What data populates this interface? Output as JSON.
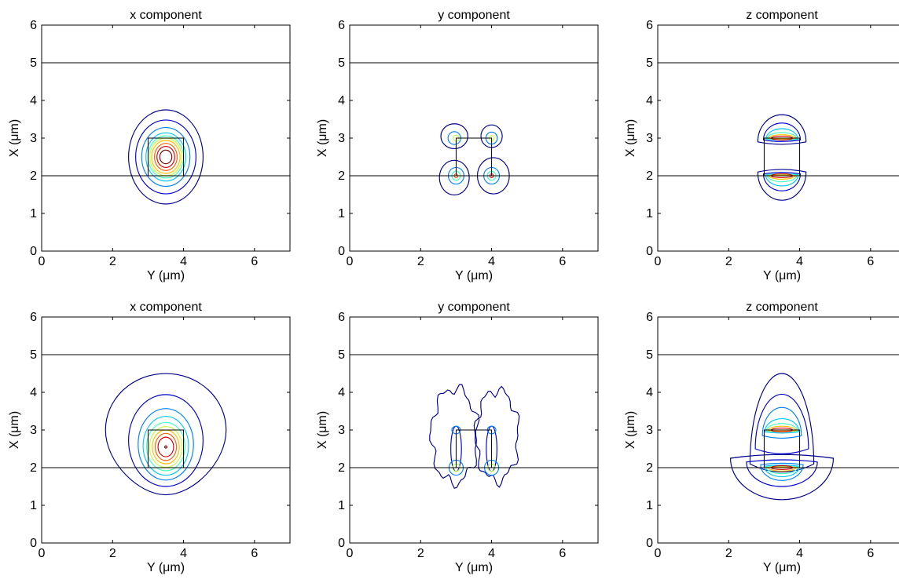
{
  "chart_data": [
    {
      "type": "contour",
      "title": "x component",
      "xlabel": "Y (μm)",
      "ylabel": "X (μm)",
      "xlim": [
        0,
        7
      ],
      "ylim": [
        0,
        6
      ],
      "xticks": [
        "0",
        "2",
        "4",
        "6"
      ],
      "yticks": [
        "0",
        "1",
        "2",
        "3",
        "4",
        "5",
        "6"
      ],
      "grid": false,
      "hlines": [
        2,
        5
      ],
      "core_box": {
        "y": [
          3,
          4
        ],
        "x": [
          2,
          3
        ]
      },
      "contours": [
        {
          "kind": "ellipse",
          "cy": 3.5,
          "cx": 2.5,
          "ry": 1.05,
          "rx": 1.25,
          "color": "#00008f"
        },
        {
          "kind": "ellipse",
          "cy": 3.5,
          "cx": 2.5,
          "ry": 0.85,
          "rx": 0.98,
          "color": "#0000d0"
        },
        {
          "kind": "ellipse",
          "cy": 3.5,
          "cx": 2.5,
          "ry": 0.68,
          "rx": 0.78,
          "color": "#0080ff"
        },
        {
          "kind": "ellipse",
          "cy": 3.5,
          "cx": 2.5,
          "ry": 0.56,
          "rx": 0.64,
          "color": "#00c8ff"
        },
        {
          "kind": "ellipse",
          "cy": 3.5,
          "cx": 2.5,
          "ry": 0.5,
          "rx": 0.56,
          "color": "#40ffbf"
        },
        {
          "kind": "ellipse",
          "cy": 3.5,
          "cx": 2.5,
          "ry": 0.45,
          "rx": 0.5,
          "color": "#bfff40"
        },
        {
          "kind": "ellipse",
          "cy": 3.5,
          "cx": 2.5,
          "ry": 0.4,
          "rx": 0.44,
          "color": "#ffbf00"
        },
        {
          "kind": "ellipse",
          "cy": 3.5,
          "cx": 2.5,
          "ry": 0.32,
          "rx": 0.36,
          "color": "#ff6000"
        },
        {
          "kind": "ellipse",
          "cy": 3.5,
          "cx": 2.5,
          "ry": 0.25,
          "rx": 0.28,
          "color": "#e00000"
        },
        {
          "kind": "ellipse",
          "cy": 3.5,
          "cx": 2.5,
          "ry": 0.17,
          "rx": 0.18,
          "color": "#800000"
        }
      ]
    },
    {
      "type": "contour",
      "title": "y component",
      "xlabel": "Y (μm)",
      "ylabel": "X (μm)",
      "xlim": [
        0,
        7
      ],
      "ylim": [
        0,
        6
      ],
      "xticks": [
        "0",
        "2",
        "4",
        "6"
      ],
      "yticks": [
        "0",
        "1",
        "2",
        "3",
        "4",
        "5",
        "6"
      ],
      "grid": false,
      "hlines": [
        2,
        5
      ],
      "core_box": {
        "y": [
          3,
          4
        ],
        "x": [
          2,
          3
        ]
      },
      "contours": [
        {
          "kind": "ellipse",
          "cy": 2.95,
          "cx": 3.05,
          "ry": 0.38,
          "rx": 0.33,
          "color": "#00008f"
        },
        {
          "kind": "ellipse",
          "cy": 2.95,
          "cx": 3.0,
          "ry": 0.18,
          "rx": 0.17,
          "color": "#0080ff"
        },
        {
          "kind": "ellipse",
          "cy": 3.0,
          "cx": 3.0,
          "ry": 0.08,
          "rx": 0.08,
          "color": "#bfff40"
        },
        {
          "kind": "ellipse",
          "cy": 4.0,
          "cx": 3.05,
          "ry": 0.3,
          "rx": 0.3,
          "color": "#00008f"
        },
        {
          "kind": "ellipse",
          "cy": 4.0,
          "cx": 3.0,
          "ry": 0.16,
          "rx": 0.16,
          "color": "#0080ff"
        },
        {
          "kind": "ellipse",
          "cy": 4.0,
          "cx": 3.0,
          "ry": 0.07,
          "rx": 0.07,
          "color": "#bfff40"
        },
        {
          "kind": "ellipse",
          "cy": 2.95,
          "cx": 1.95,
          "ry": 0.42,
          "rx": 0.46,
          "color": "#00008f"
        },
        {
          "kind": "ellipse",
          "cy": 3.0,
          "cx": 2.0,
          "ry": 0.22,
          "rx": 0.22,
          "color": "#0080ff"
        },
        {
          "kind": "ellipse",
          "cy": 3.0,
          "cx": 2.0,
          "ry": 0.12,
          "rx": 0.12,
          "color": "#40ffbf"
        },
        {
          "kind": "ellipse",
          "cy": 3.0,
          "cx": 2.0,
          "ry": 0.05,
          "rx": 0.05,
          "color": "#ff6000"
        },
        {
          "kind": "ellipse",
          "cy": 4.05,
          "cx": 2.0,
          "ry": 0.45,
          "rx": 0.48,
          "color": "#00008f"
        },
        {
          "kind": "ellipse",
          "cy": 4.0,
          "cx": 2.0,
          "ry": 0.22,
          "rx": 0.22,
          "color": "#0080ff"
        },
        {
          "kind": "ellipse",
          "cy": 4.0,
          "cx": 2.0,
          "ry": 0.12,
          "rx": 0.12,
          "color": "#40ffbf"
        },
        {
          "kind": "ellipse",
          "cy": 4.0,
          "cx": 2.0,
          "ry": 0.05,
          "rx": 0.05,
          "color": "#ff0000"
        }
      ]
    },
    {
      "type": "contour",
      "title": "z component",
      "xlabel": "Y (μm)",
      "ylabel": "X (μm)",
      "xlim": [
        0,
        7
      ],
      "ylim": [
        0,
        6
      ],
      "xticks": [
        "0",
        "2",
        "4",
        "6"
      ],
      "yticks": [
        "0",
        "1",
        "2",
        "3",
        "4",
        "5",
        "6"
      ],
      "grid": false,
      "hlines": [
        2,
        5
      ],
      "core_box": {
        "y": [
          3,
          4
        ],
        "x": [
          2,
          3
        ]
      },
      "contours": [
        {
          "kind": "upper_lobe",
          "cy": 3.5,
          "base": 2.9,
          "ry": 0.68,
          "height": 0.72,
          "color": "#00008f"
        },
        {
          "kind": "upper_lobe",
          "cy": 3.5,
          "base": 2.95,
          "ry": 0.52,
          "height": 0.45,
          "color": "#0000d0"
        },
        {
          "kind": "upper_lobe",
          "cy": 3.5,
          "base": 2.97,
          "ry": 0.45,
          "height": 0.28,
          "color": "#00c8ff"
        },
        {
          "kind": "upper_lobe",
          "cy": 3.5,
          "base": 2.98,
          "ry": 0.42,
          "height": 0.17,
          "color": "#40ffbf"
        },
        {
          "kind": "upper_lobe",
          "cy": 3.5,
          "base": 2.99,
          "ry": 0.38,
          "height": 0.1,
          "color": "#ffbf00"
        },
        {
          "kind": "ellipse",
          "cy": 3.5,
          "cx": 3.0,
          "ry": 0.3,
          "rx": 0.05,
          "color": "#e00000"
        },
        {
          "kind": "lower_lobe",
          "cy": 3.5,
          "base": 2.1,
          "ry": 0.68,
          "height": 0.75,
          "color": "#00008f"
        },
        {
          "kind": "lower_lobe",
          "cy": 3.5,
          "base": 2.05,
          "ry": 0.52,
          "height": 0.45,
          "color": "#0000d0"
        },
        {
          "kind": "lower_lobe",
          "cy": 3.5,
          "base": 2.03,
          "ry": 0.46,
          "height": 0.3,
          "color": "#00c8ff"
        },
        {
          "kind": "lower_lobe",
          "cy": 3.5,
          "base": 2.02,
          "ry": 0.42,
          "height": 0.18,
          "color": "#40ffbf"
        },
        {
          "kind": "lower_lobe",
          "cy": 3.5,
          "base": 2.01,
          "ry": 0.38,
          "height": 0.1,
          "color": "#ffbf00"
        },
        {
          "kind": "ellipse",
          "cy": 3.5,
          "cx": 2.0,
          "ry": 0.3,
          "rx": 0.05,
          "color": "#e00000"
        }
      ]
    },
    {
      "type": "contour",
      "title": "x component",
      "xlabel": "Y (μm)",
      "ylabel": "X (μm)",
      "xlim": [
        0,
        7
      ],
      "ylim": [
        0,
        6
      ],
      "xticks": [
        "0",
        "2",
        "4",
        "6"
      ],
      "yticks": [
        "0",
        "1",
        "2",
        "3",
        "4",
        "5",
        "6"
      ],
      "grid": false,
      "hlines": [
        2,
        5
      ],
      "core_box": {
        "y": [
          3,
          4
        ],
        "x": [
          2,
          3
        ]
      },
      "contours": [
        {
          "kind": "drop",
          "cy": 3.5,
          "cx": 3.0,
          "ry": 1.7,
          "rx_up": 1.5,
          "rx_down": 1.72,
          "color": "#00008f"
        },
        {
          "kind": "ellipse",
          "cy": 3.5,
          "cx": 2.72,
          "ry": 1.05,
          "rx": 1.22,
          "color": "#0000d0"
        },
        {
          "kind": "ellipse",
          "cy": 3.5,
          "cx": 2.62,
          "ry": 0.78,
          "rx": 0.95,
          "color": "#0080ff"
        },
        {
          "kind": "ellipse",
          "cy": 3.5,
          "cx": 2.58,
          "ry": 0.64,
          "rx": 0.78,
          "color": "#00c8ff"
        },
        {
          "kind": "ellipse",
          "cy": 3.5,
          "cx": 2.56,
          "ry": 0.54,
          "rx": 0.64,
          "color": "#40ffbf"
        },
        {
          "kind": "ellipse",
          "cy": 3.5,
          "cx": 2.55,
          "ry": 0.46,
          "rx": 0.54,
          "color": "#bfff40"
        },
        {
          "kind": "ellipse",
          "cy": 3.5,
          "cx": 2.55,
          "ry": 0.38,
          "rx": 0.45,
          "color": "#ffbf00"
        },
        {
          "kind": "ellipse",
          "cy": 3.5,
          "cx": 2.55,
          "ry": 0.3,
          "rx": 0.36,
          "color": "#ff6000"
        },
        {
          "kind": "ellipse",
          "cy": 3.5,
          "cx": 2.55,
          "ry": 0.22,
          "rx": 0.26,
          "color": "#e00000"
        },
        {
          "kind": "ellipse",
          "cy": 3.5,
          "cx": 2.55,
          "ry": 0.03,
          "rx": 0.03,
          "color": "#800000"
        }
      ]
    },
    {
      "type": "contour",
      "title": "y component",
      "xlabel": "Y (μm)",
      "ylabel": "X (μm)",
      "xlim": [
        0,
        7
      ],
      "ylim": [
        0,
        6
      ],
      "xticks": [
        "0",
        "2",
        "4",
        "6"
      ],
      "yticks": [
        "0",
        "1",
        "2",
        "3",
        "4",
        "5",
        "6"
      ],
      "grid": false,
      "hlines": [
        2,
        5
      ],
      "core_box": {
        "y": [
          3,
          4
        ],
        "x": [
          2,
          3
        ]
      },
      "contours": [
        {
          "kind": "wobbly",
          "cy": 2.95,
          "cx": 2.85,
          "ry": 0.65,
          "rx": 1.25,
          "color": "#00008f"
        },
        {
          "kind": "wobbly",
          "cy": 4.15,
          "cx": 2.85,
          "ry": 0.6,
          "rx": 1.2,
          "color": "#00008f"
        },
        {
          "kind": "ellipse",
          "cy": 3.0,
          "cx": 2.5,
          "ry": 0.15,
          "rx": 0.6,
          "color": "#0000d0"
        },
        {
          "kind": "ellipse",
          "cy": 4.0,
          "cx": 2.5,
          "ry": 0.15,
          "rx": 0.6,
          "color": "#0000d0"
        },
        {
          "kind": "ellipse",
          "cy": 3.0,
          "cx": 2.0,
          "ry": 0.2,
          "rx": 0.2,
          "color": "#0080ff"
        },
        {
          "kind": "ellipse",
          "cy": 3.0,
          "cx": 2.0,
          "ry": 0.1,
          "rx": 0.1,
          "color": "#bfff40"
        },
        {
          "kind": "ellipse",
          "cy": 4.0,
          "cx": 2.0,
          "ry": 0.2,
          "rx": 0.2,
          "color": "#0080ff"
        },
        {
          "kind": "ellipse",
          "cy": 4.0,
          "cx": 2.0,
          "ry": 0.1,
          "rx": 0.1,
          "color": "#bfff40"
        },
        {
          "kind": "ellipse",
          "cy": 3.0,
          "cx": 3.0,
          "ry": 0.12,
          "rx": 0.1,
          "color": "#0080ff"
        },
        {
          "kind": "ellipse",
          "cy": 4.0,
          "cx": 3.0,
          "ry": 0.12,
          "rx": 0.1,
          "color": "#0080ff"
        }
      ]
    },
    {
      "type": "contour",
      "title": "z component",
      "xlabel": "Y (μm)",
      "ylabel": "X (μm)",
      "xlim": [
        0,
        7
      ],
      "ylim": [
        0,
        6
      ],
      "xticks": [
        "0",
        "2",
        "4",
        "6"
      ],
      "yticks": [
        "0",
        "1",
        "2",
        "3",
        "4",
        "5",
        "6"
      ],
      "grid": false,
      "hlines": [
        2,
        5
      ],
      "core_box": {
        "y": [
          3,
          4
        ],
        "x": [
          2,
          3
        ]
      },
      "contours": [
        {
          "kind": "upper_lobe",
          "cy": 3.5,
          "base": 2.1,
          "ry": 0.9,
          "height": 2.4,
          "color": "#00008f"
        },
        {
          "kind": "upper_lobe",
          "cy": 3.5,
          "base": 2.5,
          "ry": 0.75,
          "height": 1.45,
          "color": "#0000d0"
        },
        {
          "kind": "upper_lobe",
          "cy": 3.5,
          "base": 2.85,
          "ry": 0.55,
          "height": 0.75,
          "color": "#0080ff"
        },
        {
          "kind": "upper_lobe",
          "cy": 3.5,
          "base": 2.95,
          "ry": 0.48,
          "height": 0.35,
          "color": "#00c8ff"
        },
        {
          "kind": "upper_lobe",
          "cy": 3.5,
          "base": 2.97,
          "ry": 0.44,
          "height": 0.2,
          "color": "#40ffbf"
        },
        {
          "kind": "upper_lobe",
          "cy": 3.5,
          "base": 2.98,
          "ry": 0.4,
          "height": 0.12,
          "color": "#ffbf00"
        },
        {
          "kind": "ellipse",
          "cy": 3.5,
          "cx": 3.0,
          "ry": 0.3,
          "rx": 0.05,
          "color": "#e00000"
        },
        {
          "kind": "lower_lobe",
          "cy": 3.5,
          "base": 2.25,
          "ry": 1.45,
          "height": 1.1,
          "color": "#00008f"
        },
        {
          "kind": "lower_lobe",
          "cy": 3.5,
          "base": 2.15,
          "ry": 1.0,
          "height": 0.65,
          "color": "#0000d0"
        },
        {
          "kind": "lower_lobe",
          "cy": 3.5,
          "base": 2.08,
          "ry": 0.6,
          "height": 0.42,
          "color": "#0080ff"
        },
        {
          "kind": "lower_lobe",
          "cy": 3.5,
          "base": 2.04,
          "ry": 0.5,
          "height": 0.28,
          "color": "#00c8ff"
        },
        {
          "kind": "lower_lobe",
          "cy": 3.5,
          "base": 2.02,
          "ry": 0.45,
          "height": 0.18,
          "color": "#40ffbf"
        },
        {
          "kind": "lower_lobe",
          "cy": 3.5,
          "base": 2.01,
          "ry": 0.4,
          "height": 0.1,
          "color": "#ffbf00"
        },
        {
          "kind": "ellipse",
          "cy": 3.5,
          "cx": 2.0,
          "ry": 0.3,
          "rx": 0.05,
          "color": "#e00000"
        }
      ]
    }
  ]
}
